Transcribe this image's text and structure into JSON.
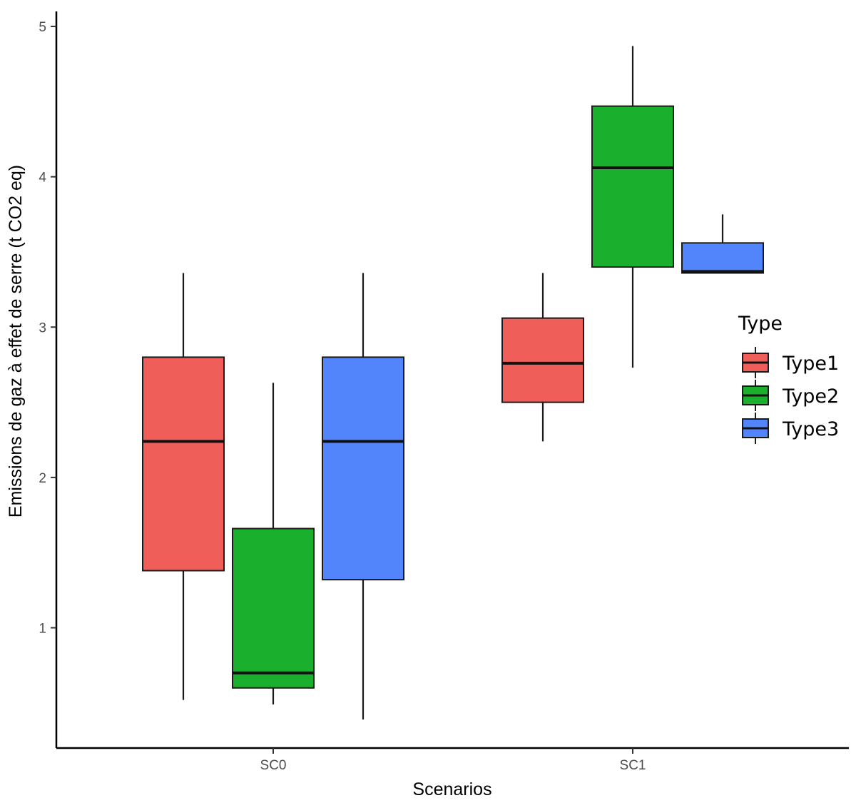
{
  "chart_data": {
    "type": "box",
    "title": "",
    "xlabel": "Scenarios",
    "ylabel": "Emissions de gaz à effet de serre (t CO2 eq)",
    "ylim": [
      0.2,
      5.1
    ],
    "yticks": [
      1,
      2,
      3,
      4,
      5
    ],
    "categories": [
      "SC0",
      "SC1"
    ],
    "legend": {
      "title": "Type",
      "position": "right"
    },
    "series": [
      {
        "name": "Type1",
        "color": "#F05E5A",
        "boxes": [
          {
            "category": "SC0",
            "min": 0.52,
            "q1": 1.38,
            "median": 2.24,
            "q3": 2.8,
            "max": 3.36
          },
          {
            "category": "SC1",
            "min": 2.24,
            "q1": 2.5,
            "median": 2.76,
            "q3": 3.06,
            "max": 3.36
          }
        ]
      },
      {
        "name": "Type2",
        "color": "#1BAF2E",
        "boxes": [
          {
            "category": "SC0",
            "min": 0.49,
            "q1": 0.6,
            "median": 0.7,
            "q3": 1.66,
            "max": 2.63
          },
          {
            "category": "SC1",
            "min": 2.73,
            "q1": 3.4,
            "median": 4.06,
            "q3": 4.47,
            "max": 4.87
          }
        ]
      },
      {
        "name": "Type3",
        "color": "#5285FC",
        "boxes": [
          {
            "category": "SC0",
            "min": 0.39,
            "q1": 1.32,
            "median": 2.24,
            "q3": 2.8,
            "max": 3.36
          },
          {
            "category": "SC1",
            "min": 3.36,
            "q1": 3.36,
            "median": 3.37,
            "q3": 3.56,
            "max": 3.75
          }
        ]
      }
    ]
  }
}
